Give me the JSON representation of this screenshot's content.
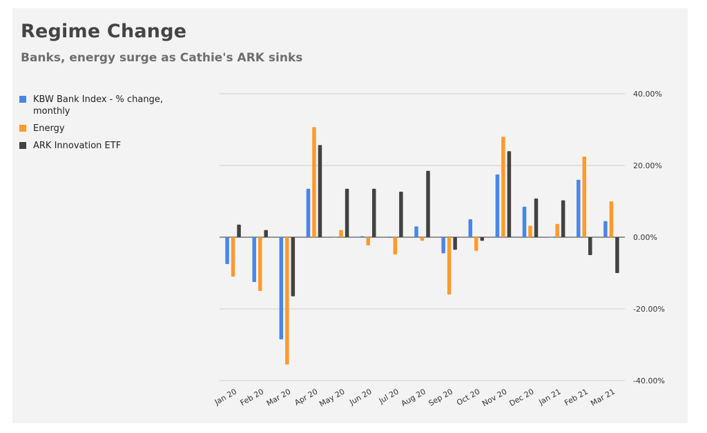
{
  "chart_data": {
    "type": "bar",
    "title": "Regime Change",
    "subtitle": "Banks, energy surge as Cathie's ARK sinks",
    "categories": [
      "Jan 20",
      "Feb 20",
      "Mar 20",
      "Apr 20",
      "May 20",
      "Jun 20",
      "Jul 20",
      "Aug 20",
      "Sep 20",
      "Oct 20",
      "Nov 20",
      "Dec 20",
      "Jan 21",
      "Feb 21",
      "Mar 21"
    ],
    "series": [
      {
        "name": "KBW Bank Index - % change, monthly",
        "color": "#4a86e8",
        "values": [
          -7.5,
          -12.5,
          -28.5,
          13.5,
          0.0,
          0.3,
          -0.2,
          3.0,
          -4.5,
          5.0,
          17.5,
          8.5,
          0.0,
          16.0,
          4.5
        ]
      },
      {
        "name": "Energy",
        "color": "#ff9a2e",
        "values": [
          -11.0,
          -15.0,
          -35.5,
          30.7,
          2.0,
          -2.3,
          -4.8,
          -1.0,
          -16.0,
          -3.8,
          28.0,
          3.2,
          3.7,
          22.5,
          10.0
        ]
      },
      {
        "name": "ARK Innovation ETF",
        "color": "#424242",
        "values": [
          3.5,
          2.0,
          -16.5,
          25.7,
          13.5,
          13.5,
          12.7,
          18.5,
          -3.5,
          -1.0,
          24.0,
          10.8,
          10.3,
          -5.0,
          -10.0
        ]
      }
    ],
    "yticks": [
      "40.00%",
      "20.00%",
      "0.00%",
      "-20.00%",
      "-40.00%"
    ],
    "ytick_values": [
      40,
      20,
      0,
      -20,
      -40
    ],
    "ylim": [
      -40,
      40
    ],
    "legend_position": "left",
    "grid": true,
    "y_axis_side": "right"
  }
}
